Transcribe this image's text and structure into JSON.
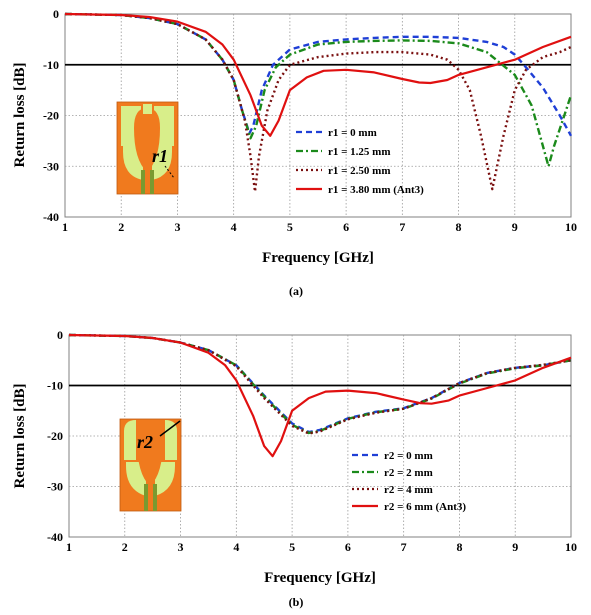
{
  "chart_data": [
    {
      "type": "line",
      "panel_label": "(a)",
      "xlabel": "Frequency [GHz]",
      "ylabel": "Return loss [dB]",
      "xlim": [
        1,
        10
      ],
      "ylim": [
        -40,
        0
      ],
      "x_ticks": [
        "1",
        "2",
        "3",
        "4",
        "5",
        "6",
        "7",
        "8",
        "9",
        "10"
      ],
      "y_ticks": [
        "0",
        "-10",
        "-20",
        "-30",
        "-40"
      ],
      "grid": "dotted",
      "legend_position": "lower-middle",
      "reference_line": -10,
      "inset_label": "r1",
      "series": [
        {
          "name": "r1 = 0 mm",
          "color": "#1f3fd6",
          "dash": "6,4",
          "x": [
            1,
            2,
            2.5,
            3,
            3.5,
            3.8,
            4,
            4.15,
            4.28,
            4.35,
            4.5,
            4.7,
            5,
            5.5,
            6,
            6.5,
            7,
            7.5,
            8,
            8.5,
            8.8,
            9,
            9.2,
            9.5,
            9.8,
            10
          ],
          "y": [
            0,
            -0.2,
            -0.8,
            -2,
            -5,
            -9,
            -13,
            -19,
            -23.5,
            -22,
            -15,
            -10,
            -7,
            -5.5,
            -5,
            -4.7,
            -4.5,
            -4.5,
            -4.7,
            -5.5,
            -6.5,
            -8,
            -10.5,
            -14.5,
            -20,
            -24
          ]
        },
        {
          "name": "r1 = 1.25 mm",
          "color": "#1b8a1b",
          "dash": "7,3,2,3",
          "x": [
            1,
            2,
            2.5,
            3,
            3.5,
            3.8,
            4,
            4.15,
            4.3,
            4.4,
            4.55,
            4.75,
            5,
            5.5,
            6,
            6.5,
            7,
            7.5,
            8,
            8.5,
            9,
            9.3,
            9.5,
            9.6,
            9.7,
            9.85,
            10
          ],
          "y": [
            0,
            -0.2,
            -0.8,
            -2,
            -5,
            -9,
            -13,
            -19,
            -24.5,
            -22,
            -15,
            -10.5,
            -8,
            -6,
            -5.5,
            -5.3,
            -5.2,
            -5.3,
            -5.8,
            -7.5,
            -12,
            -18,
            -26,
            -30,
            -26,
            -21,
            -16
          ]
        },
        {
          "name": "r1 = 2.50 mm",
          "color": "#7a1010",
          "dash": "2,3",
          "x": [
            1,
            2,
            2.5,
            3,
            3.5,
            3.8,
            4,
            4.2,
            4.3,
            4.38,
            4.45,
            4.6,
            4.8,
            5,
            5.5,
            6,
            6.5,
            7,
            7.5,
            7.8,
            8,
            8.2,
            8.4,
            8.6,
            8.8,
            9,
            9.2,
            9.5,
            9.8,
            10
          ],
          "y": [
            0,
            -0.2,
            -0.8,
            -2,
            -5,
            -9,
            -13,
            -21,
            -28,
            -35,
            -28,
            -19,
            -13,
            -10,
            -8.5,
            -7.8,
            -7.5,
            -7.5,
            -8,
            -9,
            -11,
            -15,
            -24,
            -34.5,
            -24,
            -15,
            -11,
            -8.5,
            -7.5,
            -6.5
          ]
        },
        {
          "name": "r1 = 3.80 mm (Ant3)",
          "color": "#e01010",
          "dash": "",
          "x": [
            1,
            2,
            2.5,
            3,
            3.5,
            3.8,
            4,
            4.3,
            4.5,
            4.65,
            4.8,
            5,
            5.3,
            5.6,
            6,
            6.5,
            7,
            7.3,
            7.5,
            7.8,
            8,
            8.5,
            9,
            9.5,
            10
          ],
          "y": [
            0,
            -0.2,
            -0.6,
            -1.5,
            -3.5,
            -6,
            -9,
            -16,
            -22,
            -24,
            -21,
            -15,
            -12.5,
            -11.2,
            -11,
            -11.5,
            -12.8,
            -13.5,
            -13.6,
            -13,
            -12,
            -10.5,
            -9,
            -6.5,
            -4.5
          ]
        }
      ]
    },
    {
      "type": "line",
      "panel_label": "(b)",
      "xlabel": "Frequency [GHz]",
      "ylabel": "Return loss [dB]",
      "xlim": [
        1,
        10
      ],
      "ylim": [
        -40,
        0
      ],
      "x_ticks": [
        "1",
        "2",
        "3",
        "4",
        "5",
        "6",
        "7",
        "8",
        "9",
        "10"
      ],
      "y_ticks": [
        "0",
        "-10",
        "-20",
        "-30",
        "-40"
      ],
      "grid": "dotted",
      "legend_position": "lower-right",
      "reference_line": -10,
      "inset_label": "r2",
      "series": [
        {
          "name": "r2 = 0 mm",
          "color": "#1f3fd6",
          "dash": "6,4",
          "x": [
            1,
            2,
            2.5,
            3,
            3.5,
            4,
            4.5,
            5,
            5.3,
            5.5,
            6,
            6.5,
            7,
            7.5,
            8,
            8.5,
            9,
            9.5,
            10
          ],
          "y": [
            0,
            -0.2,
            -0.6,
            -1.5,
            -3,
            -6,
            -12,
            -17.5,
            -19.2,
            -18.8,
            -16.5,
            -15.2,
            -14.5,
            -12.5,
            -9.5,
            -7.5,
            -6.5,
            -6,
            -5
          ]
        },
        {
          "name": "r2 = 2 mm",
          "color": "#1b8a1b",
          "dash": "7,3,2,3",
          "x": [
            1,
            2,
            2.5,
            3,
            3.5,
            4,
            4.5,
            5,
            5.3,
            5.5,
            6,
            6.5,
            7,
            7.5,
            8,
            8.5,
            9,
            9.5,
            10
          ],
          "y": [
            0,
            -0.2,
            -0.6,
            -1.5,
            -3,
            -6,
            -12.2,
            -17.8,
            -19.4,
            -19,
            -16.6,
            -15.3,
            -14.6,
            -12.6,
            -9.6,
            -7.6,
            -6.6,
            -6,
            -5
          ]
        },
        {
          "name": "r2 = 4 mm",
          "color": "#7a1010",
          "dash": "2,3",
          "x": [
            1,
            2,
            2.5,
            3,
            3.5,
            4,
            4.5,
            5,
            5.3,
            5.5,
            6,
            6.5,
            7,
            7.5,
            8,
            8.5,
            9,
            9.5,
            10
          ],
          "y": [
            0,
            -0.2,
            -0.6,
            -1.5,
            -3,
            -6.2,
            -12.5,
            -18,
            -19.5,
            -19.1,
            -16.7,
            -15.4,
            -14.6,
            -12.5,
            -9.5,
            -7.5,
            -6.5,
            -5.9,
            -5
          ]
        },
        {
          "name": "r2 = 6 mm (Ant3)",
          "color": "#e01010",
          "dash": "",
          "x": [
            1,
            2,
            2.5,
            3,
            3.5,
            3.8,
            4,
            4.3,
            4.5,
            4.65,
            4.8,
            5,
            5.3,
            5.6,
            6,
            6.5,
            7,
            7.3,
            7.5,
            7.8,
            8,
            8.5,
            9,
            9.5,
            10
          ],
          "y": [
            0,
            -0.2,
            -0.6,
            -1.5,
            -3.5,
            -6,
            -9,
            -16,
            -22,
            -24,
            -21,
            -15,
            -12.5,
            -11.2,
            -11,
            -11.5,
            -12.8,
            -13.5,
            -13.6,
            -13,
            -12,
            -10.5,
            -9,
            -6.5,
            -4.5
          ]
        }
      ]
    }
  ]
}
